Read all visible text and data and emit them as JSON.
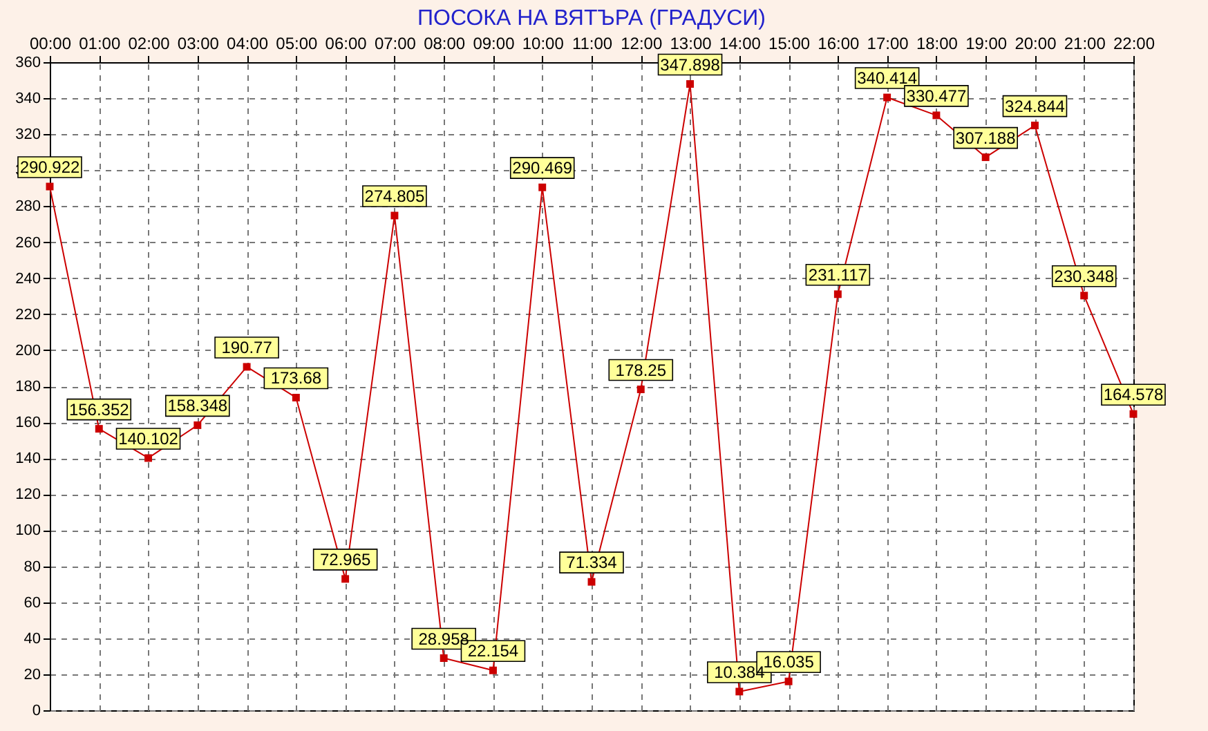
{
  "chart_data": {
    "type": "line",
    "title": "ПОСОКА НА ВЯТЪРА    (ГРАДУСИ)",
    "categories": [
      "00:00",
      "01:00",
      "02:00",
      "03:00",
      "04:00",
      "05:00",
      "06:00",
      "07:00",
      "08:00",
      "09:00",
      "10:00",
      "11:00",
      "12:00",
      "13:00",
      "14:00",
      "15:00",
      "16:00",
      "17:00",
      "18:00",
      "19:00",
      "20:00",
      "21:00",
      "22:00"
    ],
    "series": [
      {
        "color": "#cc0000",
        "values": [
          290.922,
          156.352,
          140.102,
          158.348,
          190.77,
          173.68,
          72.965,
          274.805,
          28.958,
          22.154,
          290.469,
          71.334,
          178.25,
          347.898,
          10.384,
          16.035,
          231.117,
          340.414,
          330.477,
          307.188,
          324.844,
          230.348,
          164.578
        ]
      }
    ],
    "ylim": [
      0,
      360
    ],
    "yticks": [
      0,
      20,
      40,
      60,
      80,
      100,
      120,
      140,
      160,
      180,
      200,
      220,
      240,
      260,
      280,
      300,
      320,
      340,
      360
    ],
    "grid": true,
    "marker": "square",
    "line_style": "solid",
    "data_labels": true
  }
}
